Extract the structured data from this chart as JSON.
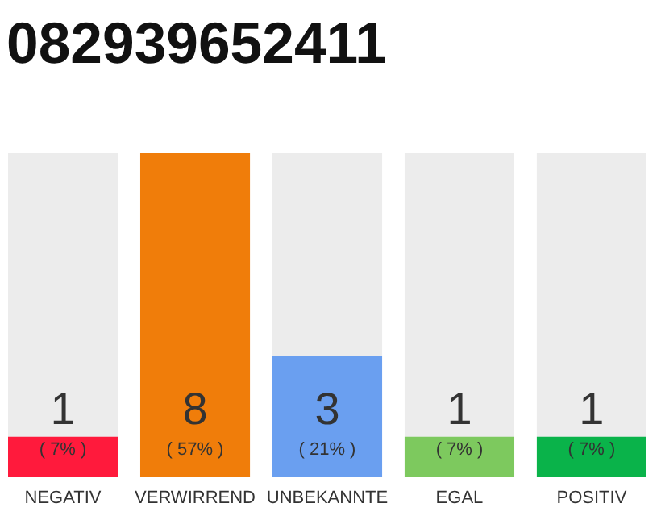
{
  "chart_data": {
    "type": "bar",
    "title": "082939652411",
    "categories": [
      "NEGATIV",
      "VERWIRREND",
      "UNBEKANNTE",
      "EGAL",
      "POSITIV"
    ],
    "values": [
      1,
      8,
      3,
      1,
      1
    ],
    "colors": [
      "#ff1a3c",
      "#f07d0a",
      "#6a9ff0",
      "#7dc95e",
      "#0ab34a"
    ],
    "ylim": [
      0,
      8
    ],
    "data_labels": true,
    "grid": false,
    "annotations": [
      "( 7% )",
      "( 57% )",
      "( 21% )",
      "( 7% )",
      "( 7% )"
    ]
  }
}
